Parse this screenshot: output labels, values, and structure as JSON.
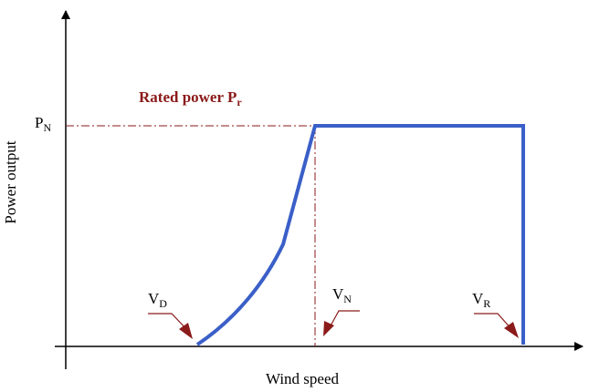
{
  "labels": {
    "y_axis": "Power output",
    "x_axis": "Wind speed",
    "rated_power": {
      "text": "Rated power P",
      "sub": "r"
    },
    "p_n": {
      "main": "P",
      "sub": "N"
    },
    "v_d": {
      "main": "V",
      "sub": "D"
    },
    "v_n": {
      "main": "V",
      "sub": "N"
    },
    "v_r": {
      "main": "V",
      "sub": "R"
    }
  },
  "colors": {
    "axis": "#000000",
    "curve": "#3a5fc8",
    "dashed": "#8b1a1a",
    "rated_text": "#8b1a1a",
    "arrow": "#8b1a1a"
  }
}
